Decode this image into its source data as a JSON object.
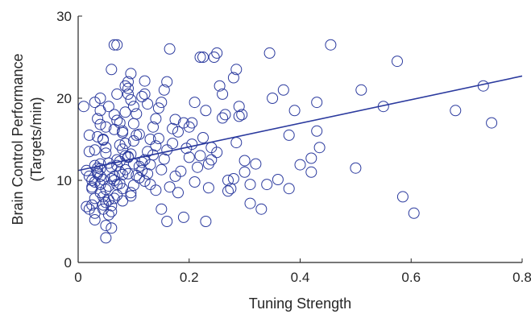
{
  "chart_data": {
    "type": "scatter",
    "title": "",
    "xlabel": "Tuning Strength",
    "ylabel_line1": "Brain Control Performance",
    "ylabel_line2": "(Targets/min)",
    "xlim": [
      0,
      0.8
    ],
    "ylim": [
      0,
      30
    ],
    "xticks": [
      0,
      0.2,
      0.4,
      0.6,
      0.8
    ],
    "xtick_labels": [
      "0",
      "0.2",
      "0.4",
      "0.6",
      "0.8"
    ],
    "yticks": [
      0,
      10,
      20,
      30
    ],
    "ytick_labels": [
      "0",
      "10",
      "20",
      "30"
    ],
    "grid": false,
    "colors": {
      "marker": "#2b3a9e",
      "fit_line": "#2b3a9e",
      "axis": "#262626"
    },
    "fit_line": {
      "x": [
        0,
        0.8
      ],
      "y": [
        11.2,
        22.7
      ]
    },
    "points": [
      [
        0.01,
        19
      ],
      [
        0.015,
        11.2
      ],
      [
        0.02,
        13.5
      ],
      [
        0.02,
        15.5
      ],
      [
        0.025,
        10
      ],
      [
        0.025,
        9.2
      ],
      [
        0.03,
        7.8
      ],
      [
        0.03,
        6
      ],
      [
        0.03,
        5.2
      ],
      [
        0.035,
        11
      ],
      [
        0.04,
        10.5
      ],
      [
        0.04,
        9.5
      ],
      [
        0.04,
        8.5
      ],
      [
        0.045,
        7
      ],
      [
        0.045,
        6.5
      ],
      [
        0.05,
        4.5
      ],
      [
        0.05,
        3
      ],
      [
        0.055,
        5.8
      ],
      [
        0.06,
        4.2
      ],
      [
        0.06,
        10.2
      ],
      [
        0.065,
        10
      ],
      [
        0.07,
        9.5
      ],
      [
        0.07,
        12.5
      ],
      [
        0.075,
        11
      ],
      [
        0.08,
        9
      ],
      [
        0.08,
        7.5
      ],
      [
        0.085,
        13
      ],
      [
        0.09,
        10.8
      ],
      [
        0.095,
        8.5
      ],
      [
        0.1,
        12
      ],
      [
        0.03,
        19.5
      ],
      [
        0.035,
        17.5
      ],
      [
        0.04,
        18.5
      ],
      [
        0.04,
        20
      ],
      [
        0.045,
        15
      ],
      [
        0.05,
        14
      ],
      [
        0.05,
        16.5
      ],
      [
        0.055,
        19
      ],
      [
        0.06,
        23.5
      ],
      [
        0.065,
        18
      ],
      [
        0.065,
        26.5
      ],
      [
        0.07,
        26.5
      ],
      [
        0.07,
        20.5
      ],
      [
        0.075,
        17
      ],
      [
        0.08,
        16
      ],
      [
        0.085,
        21.5
      ],
      [
        0.09,
        22
      ],
      [
        0.09,
        20.5
      ],
      [
        0.095,
        23
      ],
      [
        0.1,
        19
      ],
      [
        0.015,
        6.8
      ],
      [
        0.02,
        6.5
      ],
      [
        0.025,
        7
      ],
      [
        0.03,
        9.8
      ],
      [
        0.035,
        11.5
      ],
      [
        0.04,
        12
      ],
      [
        0.045,
        8
      ],
      [
        0.05,
        7.3
      ],
      [
        0.055,
        9.3
      ],
      [
        0.06,
        6.2
      ],
      [
        0.065,
        10.5
      ],
      [
        0.07,
        11.8
      ],
      [
        0.075,
        12.3
      ],
      [
        0.08,
        13.8
      ],
      [
        0.085,
        14.5
      ],
      [
        0.09,
        12.8
      ],
      [
        0.095,
        13.2
      ],
      [
        0.1,
        14.8
      ],
      [
        0.105,
        15.5
      ],
      [
        0.11,
        10.3
      ],
      [
        0.115,
        11.2
      ],
      [
        0.12,
        12.5
      ],
      [
        0.125,
        13.5
      ],
      [
        0.13,
        15
      ],
      [
        0.135,
        16.5
      ],
      [
        0.14,
        17.5
      ],
      [
        0.145,
        18.8
      ],
      [
        0.15,
        19.5
      ],
      [
        0.155,
        21
      ],
      [
        0.16,
        22
      ],
      [
        0.12,
        20.5
      ],
      [
        0.13,
        9.5
      ],
      [
        0.14,
        8.8
      ],
      [
        0.15,
        6.5
      ],
      [
        0.16,
        5
      ],
      [
        0.165,
        26
      ],
      [
        0.17,
        14.5
      ],
      [
        0.175,
        10.5
      ],
      [
        0.18,
        8.5
      ],
      [
        0.19,
        5.5
      ],
      [
        0.19,
        17
      ],
      [
        0.2,
        16.5
      ],
      [
        0.205,
        17
      ],
      [
        0.21,
        19.5
      ],
      [
        0.22,
        25
      ],
      [
        0.225,
        25
      ],
      [
        0.23,
        18.5
      ],
      [
        0.235,
        12
      ],
      [
        0.24,
        14
      ],
      [
        0.245,
        25
      ],
      [
        0.25,
        25.5
      ],
      [
        0.255,
        21.5
      ],
      [
        0.26,
        20.5
      ],
      [
        0.265,
        18
      ],
      [
        0.27,
        10
      ],
      [
        0.275,
        9
      ],
      [
        0.28,
        22.5
      ],
      [
        0.285,
        23.5
      ],
      [
        0.29,
        19
      ],
      [
        0.295,
        18
      ],
      [
        0.3,
        11
      ],
      [
        0.31,
        9.5
      ],
      [
        0.32,
        12
      ],
      [
        0.33,
        6.5
      ],
      [
        0.345,
        25.5
      ],
      [
        0.35,
        20
      ],
      [
        0.37,
        21
      ],
      [
        0.38,
        15.5
      ],
      [
        0.38,
        9
      ],
      [
        0.39,
        18.5
      ],
      [
        0.42,
        11
      ],
      [
        0.43,
        16
      ],
      [
        0.43,
        19.5
      ],
      [
        0.435,
        14
      ],
      [
        0.455,
        26.5
      ],
      [
        0.5,
        11.5
      ],
      [
        0.51,
        21
      ],
      [
        0.55,
        19
      ],
      [
        0.575,
        24.5
      ],
      [
        0.585,
        8
      ],
      [
        0.605,
        6
      ],
      [
        0.68,
        18.5
      ],
      [
        0.73,
        21.5
      ],
      [
        0.745,
        17
      ],
      [
        0.02,
        10.5
      ],
      [
        0.025,
        9
      ],
      [
        0.03,
        11.8
      ],
      [
        0.035,
        10.8
      ],
      [
        0.04,
        11.4
      ],
      [
        0.045,
        10.1
      ],
      [
        0.05,
        8.9
      ],
      [
        0.055,
        7.6
      ],
      [
        0.06,
        6.9
      ],
      [
        0.065,
        7.8
      ],
      [
        0.07,
        8.2
      ],
      [
        0.075,
        9.6
      ],
      [
        0.08,
        10.7
      ],
      [
        0.085,
        11.3
      ],
      [
        0.09,
        12.9
      ],
      [
        0.095,
        8.1
      ],
      [
        0.1,
        9.4
      ],
      [
        0.105,
        10.6
      ],
      [
        0.11,
        11.7
      ],
      [
        0.115,
        12.2
      ],
      [
        0.12,
        9.9
      ],
      [
        0.125,
        10.8
      ],
      [
        0.13,
        11.9
      ],
      [
        0.135,
        13.1
      ],
      [
        0.14,
        14.2
      ],
      [
        0.145,
        15.1
      ],
      [
        0.15,
        11.3
      ],
      [
        0.155,
        12.6
      ],
      [
        0.16,
        13.7
      ],
      [
        0.165,
        9.2
      ],
      [
        0.17,
        16.3
      ],
      [
        0.175,
        17.4
      ],
      [
        0.18,
        15.9
      ],
      [
        0.185,
        11.1
      ],
      [
        0.195,
        13.9
      ],
      [
        0.2,
        12.8
      ],
      [
        0.205,
        14.4
      ],
      [
        0.21,
        9.8
      ],
      [
        0.215,
        11.6
      ],
      [
        0.22,
        13
      ],
      [
        0.225,
        15.2
      ],
      [
        0.23,
        5
      ],
      [
        0.235,
        9.1
      ],
      [
        0.24,
        12.5
      ],
      [
        0.25,
        13.4
      ],
      [
        0.26,
        17.6
      ],
      [
        0.27,
        8.7
      ],
      [
        0.28,
        10.2
      ],
      [
        0.285,
        14.6
      ],
      [
        0.29,
        17.8
      ],
      [
        0.3,
        12.4
      ],
      [
        0.31,
        7.2
      ],
      [
        0.34,
        9.5
      ],
      [
        0.36,
        10.1
      ],
      [
        0.4,
        11.9
      ],
      [
        0.42,
        12.7
      ],
      [
        0.03,
        13.7
      ],
      [
        0.035,
        15.3
      ],
      [
        0.04,
        16.8
      ],
      [
        0.045,
        14.9
      ],
      [
        0.05,
        13.3
      ],
      [
        0.055,
        12.1
      ],
      [
        0.06,
        11.6
      ],
      [
        0.065,
        16.2
      ],
      [
        0.07,
        17.3
      ],
      [
        0.075,
        14.3
      ],
      [
        0.08,
        15.8
      ],
      [
        0.085,
        18.3
      ],
      [
        0.09,
        21.2
      ],
      [
        0.095,
        19.8
      ],
      [
        0.1,
        16.9
      ],
      [
        0.105,
        18.1
      ],
      [
        0.11,
        15.6
      ],
      [
        0.115,
        20.2
      ],
      [
        0.12,
        22.1
      ],
      [
        0.125,
        19.3
      ]
    ]
  }
}
